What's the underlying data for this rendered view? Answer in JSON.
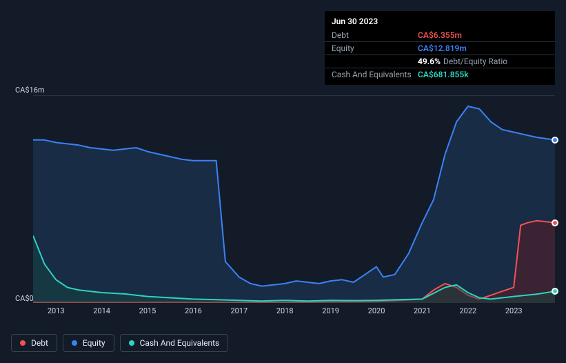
{
  "tooltip": {
    "date": "Jun 30 2023",
    "rows": [
      {
        "label": "Debt",
        "value": "CA$6.355m",
        "color": "#f05252"
      },
      {
        "label": "Equity",
        "value": "CA$12.819m",
        "color": "#3b82f6"
      },
      {
        "label": "",
        "ratio_pct": "49.6%",
        "ratio_label": "Debt/Equity Ratio"
      },
      {
        "label": "Cash And Equivalents",
        "value": "CA$681.855k",
        "color": "#2dd4bf"
      }
    ]
  },
  "chart": {
    "type": "area",
    "background_color": "#131b29",
    "grid_color": "#2a3240",
    "y_axis": {
      "min": 0,
      "max": 16,
      "ticks": [
        {
          "v": 16,
          "label": "CA$16m"
        },
        {
          "v": 0,
          "label": "CA$0"
        }
      ],
      "label_fontsize": 11,
      "label_color": "#cfd6e4"
    },
    "x_axis": {
      "min": 2012.5,
      "max": 2023.9,
      "ticks": [
        2013,
        2014,
        2015,
        2016,
        2017,
        2018,
        2019,
        2020,
        2021,
        2022,
        2023
      ],
      "label_fontsize": 11,
      "label_color": "#cfd6e4"
    },
    "series": [
      {
        "name": "Equity",
        "color": "#3b82f6",
        "fill": "#1e3a5f",
        "fill_opacity": 0.55,
        "line_width": 2,
        "data": [
          [
            2012.5,
            12.6
          ],
          [
            2012.75,
            12.6
          ],
          [
            2013,
            12.4
          ],
          [
            2013.25,
            12.3
          ],
          [
            2013.5,
            12.2
          ],
          [
            2013.75,
            12.0
          ],
          [
            2014,
            11.9
          ],
          [
            2014.25,
            11.8
          ],
          [
            2014.5,
            11.9
          ],
          [
            2014.75,
            12.0
          ],
          [
            2015,
            11.7
          ],
          [
            2015.25,
            11.5
          ],
          [
            2015.5,
            11.3
          ],
          [
            2015.75,
            11.1
          ],
          [
            2016,
            11.0
          ],
          [
            2016.25,
            11.0
          ],
          [
            2016.5,
            11.0
          ],
          [
            2016.7,
            3.2
          ],
          [
            2017,
            2.0
          ],
          [
            2017.25,
            1.5
          ],
          [
            2017.5,
            1.3
          ],
          [
            2017.75,
            1.4
          ],
          [
            2018,
            1.5
          ],
          [
            2018.25,
            1.7
          ],
          [
            2018.5,
            1.6
          ],
          [
            2018.75,
            1.5
          ],
          [
            2019,
            1.7
          ],
          [
            2019.25,
            1.8
          ],
          [
            2019.5,
            1.6
          ],
          [
            2019.75,
            2.2
          ],
          [
            2020,
            2.8
          ],
          [
            2020.15,
            2.0
          ],
          [
            2020.4,
            2.2
          ],
          [
            2020.7,
            3.8
          ],
          [
            2021,
            6.2
          ],
          [
            2021.25,
            8.0
          ],
          [
            2021.5,
            11.5
          ],
          [
            2021.75,
            14.0
          ],
          [
            2022,
            15.2
          ],
          [
            2022.25,
            15.0
          ],
          [
            2022.5,
            14.0
          ],
          [
            2022.75,
            13.4
          ],
          [
            2023,
            13.2
          ],
          [
            2023.25,
            13.0
          ],
          [
            2023.5,
            12.8
          ],
          [
            2023.9,
            12.6
          ]
        ]
      },
      {
        "name": "Debt",
        "color": "#f05252",
        "fill": "#5a1e24",
        "fill_opacity": 0.55,
        "line_width": 2,
        "data": [
          [
            2012.5,
            0.05
          ],
          [
            2014,
            0.05
          ],
          [
            2016,
            0.05
          ],
          [
            2018,
            0.05
          ],
          [
            2019,
            0.08
          ],
          [
            2020,
            0.1
          ],
          [
            2020.5,
            0.2
          ],
          [
            2021,
            0.3
          ],
          [
            2021.25,
            1.0
          ],
          [
            2021.5,
            1.5
          ],
          [
            2021.75,
            1.2
          ],
          [
            2022,
            0.6
          ],
          [
            2022.25,
            0.3
          ],
          [
            2022.5,
            0.6
          ],
          [
            2022.75,
            0.9
          ],
          [
            2023,
            1.2
          ],
          [
            2023.15,
            6.0
          ],
          [
            2023.3,
            6.2
          ],
          [
            2023.5,
            6.355
          ],
          [
            2023.9,
            6.2
          ]
        ]
      },
      {
        "name": "Cash And Equivalents",
        "color": "#2dd4bf",
        "fill": "#14483f",
        "fill_opacity": 0.45,
        "line_width": 2,
        "data": [
          [
            2012.5,
            5.2
          ],
          [
            2012.75,
            3.0
          ],
          [
            2013,
            1.8
          ],
          [
            2013.25,
            1.2
          ],
          [
            2013.5,
            1.0
          ],
          [
            2013.75,
            0.9
          ],
          [
            2014,
            0.8
          ],
          [
            2014.5,
            0.7
          ],
          [
            2015,
            0.5
          ],
          [
            2015.5,
            0.4
          ],
          [
            2016,
            0.3
          ],
          [
            2016.5,
            0.25
          ],
          [
            2017,
            0.2
          ],
          [
            2017.5,
            0.15
          ],
          [
            2018,
            0.2
          ],
          [
            2018.5,
            0.15
          ],
          [
            2019,
            0.2
          ],
          [
            2019.5,
            0.18
          ],
          [
            2020,
            0.2
          ],
          [
            2020.5,
            0.25
          ],
          [
            2021,
            0.3
          ],
          [
            2021.5,
            1.2
          ],
          [
            2021.75,
            1.4
          ],
          [
            2022,
            0.8
          ],
          [
            2022.25,
            0.4
          ],
          [
            2022.5,
            0.3
          ],
          [
            2023,
            0.5
          ],
          [
            2023.5,
            0.682
          ],
          [
            2023.9,
            0.9
          ]
        ]
      }
    ],
    "end_markers": [
      {
        "series": "Equity",
        "x": 2023.9,
        "y": 12.6,
        "color": "#3b82f6"
      },
      {
        "series": "Debt",
        "x": 2023.9,
        "y": 6.2,
        "color": "#f05252"
      },
      {
        "series": "Cash And Equivalents",
        "x": 2023.9,
        "y": 0.9,
        "color": "#2dd4bf"
      }
    ]
  },
  "legend": {
    "items": [
      {
        "label": "Debt",
        "color": "#f05252"
      },
      {
        "label": "Equity",
        "color": "#3b82f6"
      },
      {
        "label": "Cash And Equivalents",
        "color": "#2dd4bf"
      }
    ]
  }
}
